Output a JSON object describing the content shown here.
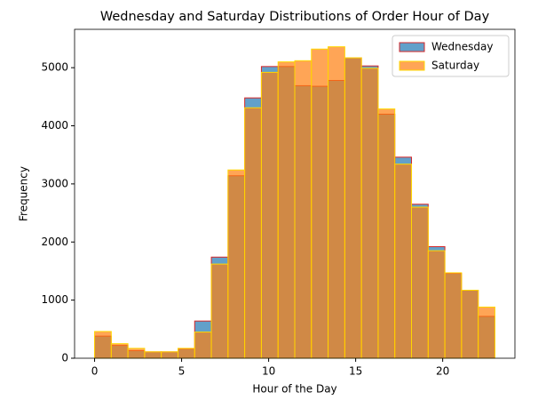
{
  "chart_data": {
    "type": "histogram",
    "title": "Wednesday and Saturday Distributions of Order Hour of Day",
    "x_label": "Hour of the Day",
    "y_label": "Frequency",
    "bins": [
      0,
      0.9583,
      1.9167,
      2.875,
      3.8333,
      4.7917,
      5.75,
      6.7083,
      7.6667,
      8.625,
      9.5833,
      10.5417,
      11.5,
      12.4583,
      13.4167,
      14.375,
      15.3333,
      16.2917,
      17.25,
      18.2083,
      19.1667,
      20.125,
      21.0833,
      22.0417,
      23
    ],
    "series": [
      {
        "name": "Wednesday",
        "color": "#1f77b4",
        "edge_color": "#d62728",
        "values": [
          380,
          220,
          130,
          110,
          110,
          160,
          640,
          1740,
          3140,
          4480,
          5020,
          5020,
          4690,
          4680,
          4780,
          5170,
          5030,
          4200,
          3460,
          2650,
          1920,
          1460,
          1170,
          720
        ]
      },
      {
        "name": "Saturday",
        "color": "#ff7f0e",
        "edge_color": "#ffd700",
        "values": [
          460,
          250,
          170,
          110,
          110,
          170,
          450,
          1620,
          3240,
          4310,
          4920,
          5100,
          5120,
          5320,
          5360,
          5170,
          4990,
          4290,
          3340,
          2600,
          1850,
          1470,
          1170,
          880
        ]
      }
    ],
    "xlim": [
      -1.15,
      24.15
    ],
    "ylim": [
      0,
      5660
    ],
    "xticks": [
      0,
      5,
      10,
      15,
      20
    ],
    "yticks": [
      0,
      1000,
      2000,
      3000,
      4000,
      5000
    ],
    "legend": "upper right"
  }
}
